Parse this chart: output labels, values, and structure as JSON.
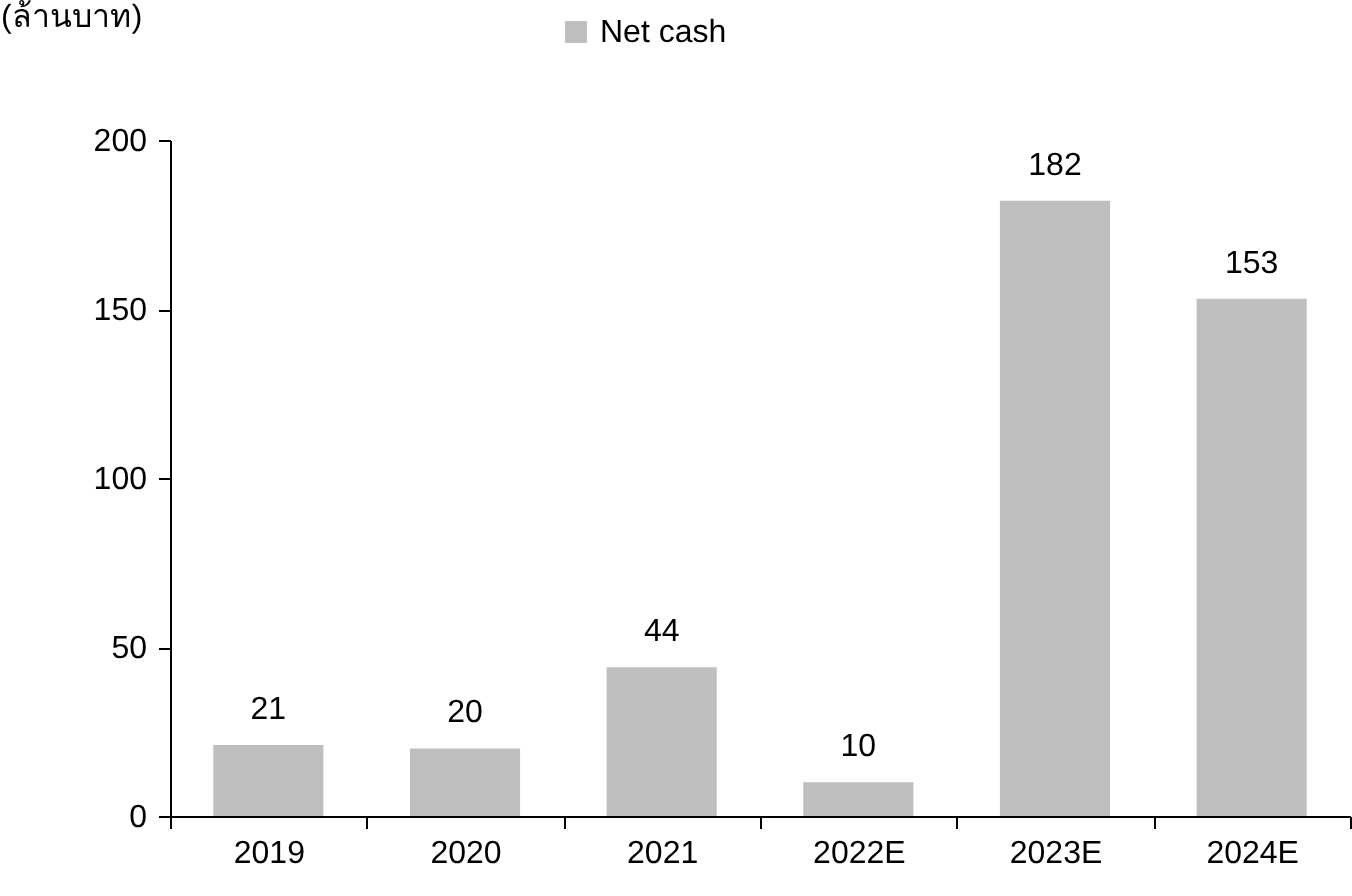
{
  "chart_data": {
    "type": "bar",
    "ylabel": "(ล้านบาท)",
    "categories": [
      "2019",
      "2020",
      "2021",
      "2022E",
      "2023E",
      "2024E"
    ],
    "series": [
      {
        "name": "Net cash",
        "color": "#bfbfbf",
        "values": [
          21,
          20,
          44,
          10,
          182,
          153
        ]
      }
    ],
    "ylim": [
      0,
      200
    ],
    "yticks": [
      0,
      50,
      100,
      150,
      200
    ],
    "data_labels": true,
    "legend": "top",
    "grid": false
  }
}
